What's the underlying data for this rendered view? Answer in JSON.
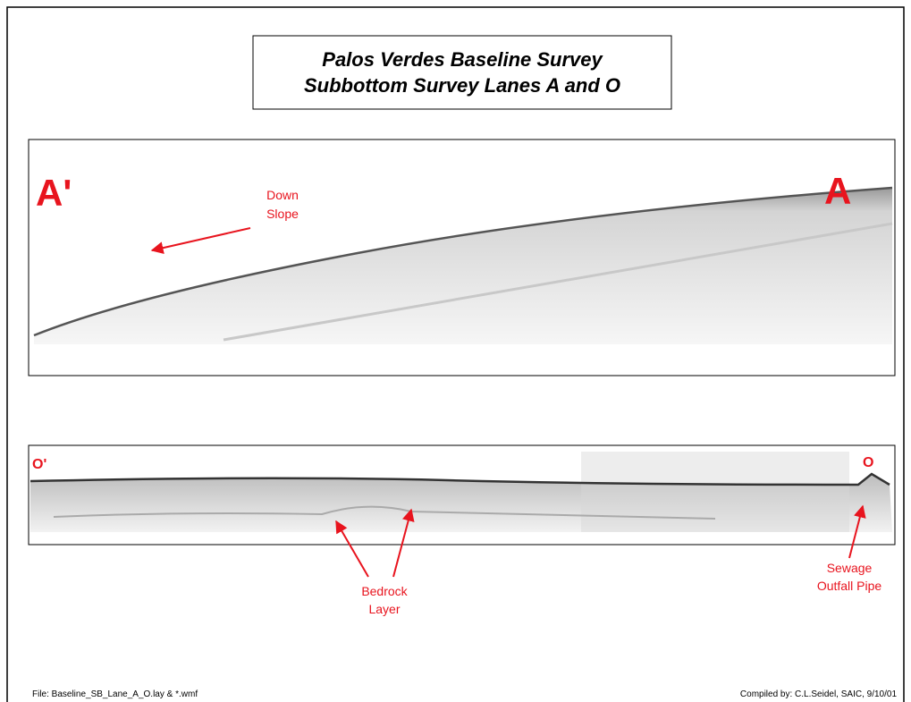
{
  "header": {
    "title": [
      "Palos Verdes Baseline Survey",
      "Subbottom Survey Lanes A and O"
    ]
  },
  "panel_a": {
    "left_label": "A'",
    "right_label": "A",
    "annotation": [
      "Down",
      "Slope"
    ]
  },
  "panel_o": {
    "left_label": "O'",
    "right_label": "O",
    "annotations": [
      {
        "lines": [
          "Bedrock",
          "Layer"
        ]
      },
      {
        "lines": [
          "Sewage",
          "Outfall Pipe"
        ]
      }
    ]
  },
  "footer": {
    "file": "File:  Baseline_SB_Lane_A_O.lay & *.wmf",
    "credit": "Compiled by:  C.L.Seidel, SAIC, 9/10/01"
  }
}
